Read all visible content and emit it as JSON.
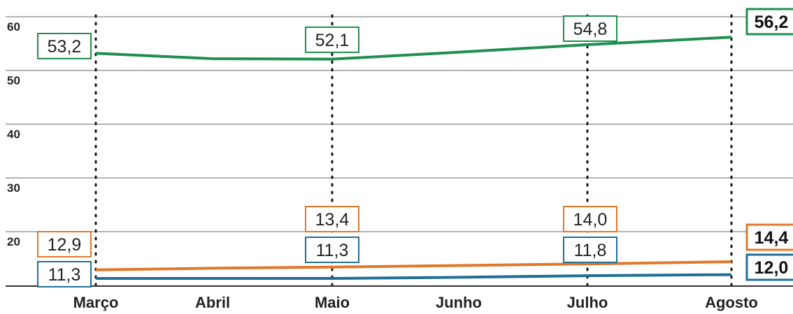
{
  "chart_data": {
    "type": "line",
    "categories": [
      "Março",
      "Abril",
      "Maio",
      "Junho",
      "Julho",
      "Agosto"
    ],
    "y_ticks": [
      "60",
      "50",
      "40",
      "30",
      "20"
    ],
    "ylim": [
      10,
      62
    ],
    "grid": true,
    "series": [
      {
        "color": "#1f8f4e",
        "values": [
          53.2,
          52.2,
          52.1,
          53.4,
          54.8,
          56.2
        ],
        "labels": [
          "53,2",
          "",
          "52,1",
          "",
          "54,8",
          "56,2"
        ]
      },
      {
        "color": "#e0782b",
        "values": [
          12.9,
          13.2,
          13.4,
          13.7,
          14.0,
          14.4
        ],
        "labels": [
          "12,9",
          "",
          "13,4",
          "",
          "14,0",
          "14,4"
        ]
      },
      {
        "color": "#1f6f96",
        "values": [
          11.3,
          11.3,
          11.3,
          11.5,
          11.8,
          12.0
        ],
        "labels": [
          "11,3",
          "",
          "11,3",
          "",
          "11,8",
          "12,0"
        ]
      }
    ]
  }
}
